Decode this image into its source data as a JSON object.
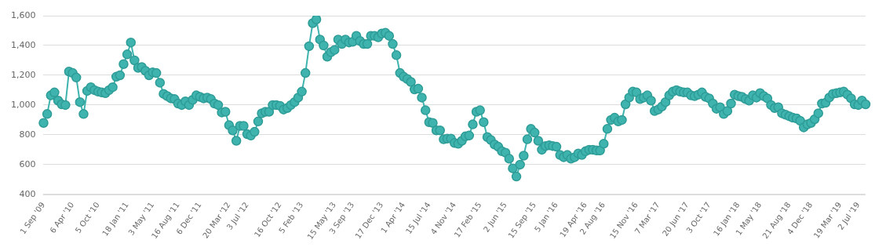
{
  "chart_data": {
    "type": "line",
    "marker": "circle",
    "grid": "y",
    "legend": false,
    "categories": [
      "1 Sep '09",
      null,
      null,
      null,
      null,
      null,
      null,
      null,
      "6 Apr '10",
      null,
      null,
      null,
      null,
      null,
      null,
      "5 Oct '10",
      null,
      null,
      null,
      null,
      null,
      null,
      null,
      "18 Jan '11",
      null,
      null,
      null,
      null,
      null,
      null,
      "3 May '11",
      null,
      null,
      null,
      null,
      null,
      null,
      "16 Aug '11",
      null,
      null,
      null,
      null,
      null,
      "6 Dec '11",
      null,
      null,
      null,
      null,
      null,
      null,
      null,
      "20 Mar '12",
      null,
      null,
      null,
      null,
      "3 Jul '12",
      null,
      null,
      null,
      null,
      null,
      null,
      null,
      null,
      "16 Oct '12",
      null,
      null,
      null,
      null,
      null,
      "5 Feb '13",
      null,
      null,
      null,
      null,
      null,
      null,
      null,
      null,
      "15 May '13",
      null,
      null,
      null,
      null,
      "3 Sep '13",
      null,
      null,
      null,
      null,
      null,
      null,
      null,
      "17 Dec '13",
      null,
      null,
      null,
      null,
      null,
      "1 Apr '14",
      null,
      null,
      null,
      null,
      null,
      null,
      "15 Jul '14",
      null,
      null,
      null,
      null,
      null,
      null,
      "4 Nov '14",
      null,
      null,
      null,
      null,
      null,
      null,
      "17 Feb '15",
      null,
      null,
      null,
      null,
      null,
      null,
      "2 Jun '15",
      null,
      null,
      null,
      null,
      null,
      null,
      null,
      "15 Sep '15",
      null,
      null,
      null,
      null,
      null,
      "5 Jan '16",
      null,
      null,
      null,
      null,
      null,
      null,
      null,
      "19 Apr '16",
      null,
      null,
      null,
      null,
      "2 Aug '16",
      null,
      null,
      null,
      null,
      null,
      null,
      null,
      null,
      "15 Nov '16",
      null,
      null,
      null,
      null,
      null,
      "7 Mar '17",
      null,
      null,
      null,
      null,
      null,
      null,
      null,
      "20 Jun '17",
      null,
      null,
      null,
      null,
      null,
      "3 Oct '17",
      null,
      null,
      null,
      null,
      null,
      null,
      null,
      "16 Jan '18",
      null,
      null,
      null,
      null,
      null,
      "1 May '18",
      null,
      null,
      null,
      null,
      null,
      null,
      null,
      "21 Aug '18",
      null,
      null,
      null,
      null,
      null,
      "4 Dec '18",
      null,
      null,
      null,
      null,
      null,
      null,
      null,
      "19 Mar '19",
      null,
      null,
      null,
      null,
      "2 Jul '19",
      null,
      null
    ],
    "series": [
      {
        "color": "#3fb3ae",
        "values": [
          880,
          940,
          1065,
          1085,
          1030,
          1005,
          1000,
          1225,
          1215,
          1185,
          1020,
          940,
          1095,
          1120,
          1100,
          1090,
          1085,
          1080,
          1100,
          1120,
          1190,
          1200,
          1275,
          1340,
          1420,
          1300,
          1250,
          1255,
          1230,
          1200,
          1220,
          1215,
          1150,
          1075,
          1060,
          1045,
          1040,
          1010,
          1000,
          1025,
          1000,
          1035,
          1065,
          1055,
          1045,
          1050,
          1040,
          1010,
          1000,
          950,
          955,
          865,
          830,
          760,
          860,
          860,
          805,
          795,
          820,
          890,
          945,
          955,
          955,
          1000,
          1000,
          995,
          970,
          980,
          1000,
          1020,
          1050,
          1090,
          1215,
          1395,
          1550,
          1575,
          1440,
          1400,
          1325,
          1355,
          1370,
          1440,
          1410,
          1440,
          1420,
          1425,
          1465,
          1430,
          1410,
          1410,
          1465,
          1465,
          1455,
          1480,
          1485,
          1465,
          1410,
          1335,
          1215,
          1190,
          1175,
          1155,
          1105,
          1110,
          1050,
          965,
          885,
          880,
          830,
          830,
          770,
          775,
          775,
          745,
          740,
          760,
          790,
          795,
          870,
          955,
          965,
          885,
          785,
          765,
          735,
          720,
          690,
          680,
          640,
          575,
          520,
          600,
          660,
          770,
          840,
          815,
          760,
          700,
          725,
          730,
          725,
          720,
          665,
          650,
          665,
          640,
          650,
          675,
          665,
          690,
          700,
          700,
          695,
          695,
          740,
          840,
          900,
          915,
          890,
          900,
          1005,
          1050,
          1090,
          1085,
          1040,
          1050,
          1065,
          1030,
          960,
          970,
          990,
          1020,
          1065,
          1090,
          1100,
          1090,
          1085,
          1085,
          1065,
          1060,
          1070,
          1085,
          1055,
          1045,
          1010,
          975,
          985,
          940,
          960,
          1010,
          1070,
          1060,
          1055,
          1040,
          1030,
          1065,
          1050,
          1080,
          1060,
          1045,
          1000,
          980,
          985,
          945,
          935,
          925,
          915,
          910,
          895,
          850,
          870,
          880,
          905,
          945,
          1010,
          1015,
          1050,
          1075,
          1080,
          1085,
          1090,
          1070,
          1045,
          1005,
          1000,
          1030,
          1005
        ]
      }
    ],
    "ylim": [
      400,
      1600
    ],
    "yticks": [
      400,
      600,
      800,
      {
        "value": 1000,
        "label": "1,000"
      },
      {
        "value": 1200,
        "label": "1,200"
      },
      {
        "value": 1400,
        "label": "1,400"
      },
      {
        "value": 1600,
        "label": "1,600"
      }
    ]
  }
}
